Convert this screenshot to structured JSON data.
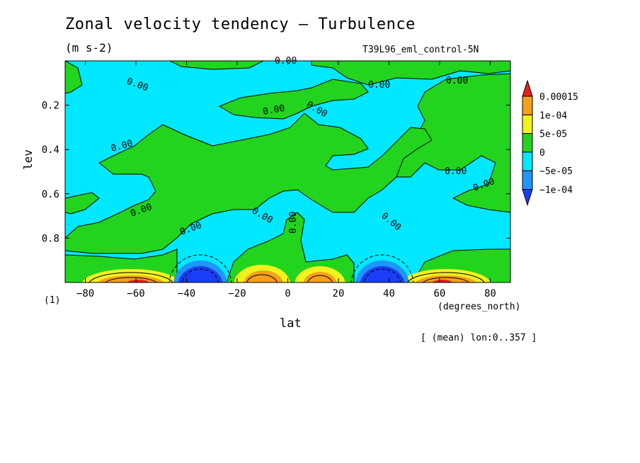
{
  "chart_data": {
    "type": "contour",
    "title": "Zonal velocity tendency — Turbulence",
    "units": "(m s-2)",
    "experiment": "T39L96_eml_control-5N",
    "xlabel": "lat",
    "ylabel": "lev",
    "x_units_label": "(degrees_north)",
    "footnote": "[ (mean) lon:0..357 ]",
    "scale_mark": "(1)",
    "xlim": [
      -88,
      88
    ],
    "ylim": [
      1.0,
      0.0
    ],
    "x_ticks": [
      -80,
      -60,
      -40,
      -20,
      0,
      20,
      40,
      60,
      80
    ],
    "x_tick_labels": [
      "−80",
      "−60",
      "−40",
      "−20",
      "0",
      "20",
      "40",
      "60",
      "80"
    ],
    "y_ticks": [
      0.2,
      0.4,
      0.6,
      0.8
    ],
    "y_tick_labels": [
      "0.2",
      "0.4",
      "0.6",
      "0.8"
    ],
    "contour_label": "0.00",
    "colorbar": {
      "levels": [
        "0.00015",
        "1e-04",
        "5e-05",
        "0",
        "−5e-05",
        "−1e-04"
      ],
      "colors": [
        "#e8201c",
        "#f7a01c",
        "#f2f21e",
        "#22d41e",
        "#00e8ff",
        "#1f95ff",
        "#1a3ef5"
      ]
    },
    "features": [
      {
        "lat": -57,
        "sign": "positive",
        "peak_ge": 0.00015
      },
      {
        "lat": -35,
        "sign": "negative",
        "peak_le": -0.0001
      },
      {
        "lat": -8,
        "sign": "positive",
        "peak_ge": 0.0001
      },
      {
        "lat": 12,
        "sign": "positive",
        "peak_ge": 0.0001
      },
      {
        "lat": 36,
        "sign": "negative",
        "peak_le": -0.0001
      },
      {
        "lat": 57,
        "sign": "positive",
        "peak_ge": 0.00015
      }
    ]
  }
}
